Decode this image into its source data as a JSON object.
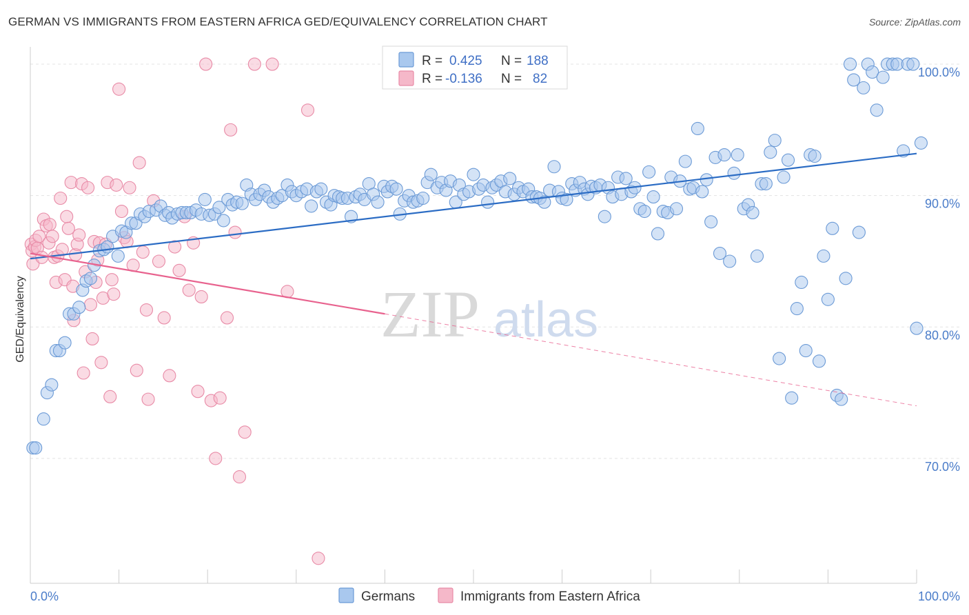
{
  "title": "GERMAN VS IMMIGRANTS FROM EASTERN AFRICA GED/EQUIVALENCY CORRELATION CHART",
  "source": "Source: ZipAtlas.com",
  "watermark": {
    "zip": "ZIP",
    "atlas": "atlas"
  },
  "colors": {
    "blue_fill": "#a9c8ee",
    "blue_stroke": "#6b9ad6",
    "blue_line": "#2b6cc4",
    "pink_fill": "#f5b8c9",
    "pink_stroke": "#e88aa6",
    "pink_line": "#e8628e",
    "tick_text": "#4a7cc9",
    "grid": "#e3e3e3"
  },
  "legend": {
    "r_label": "R =",
    "n_label": "N =",
    "blue": {
      "r": "0.425",
      "n": "188"
    },
    "pink": {
      "r": "-0.136",
      "n": "82"
    }
  },
  "bottom_legend": {
    "blue": "Germans",
    "pink": "Immigrants from Eastern Africa"
  },
  "chart_data": {
    "type": "scatter",
    "title": "GERMAN VS IMMIGRANTS FROM EASTERN AFRICA GED/EQUIVALENCY CORRELATION CHART",
    "xlabel": "",
    "ylabel": "GED/Equivalency",
    "xlim": [
      0,
      100
    ],
    "ylim": [
      60.5,
      101
    ],
    "x_tick_labels": [
      {
        "value": 0,
        "label": "0.0%"
      },
      {
        "value": 100,
        "label": "100.0%"
      }
    ],
    "y_ticks": [
      {
        "value": 100,
        "label": "100.0%"
      },
      {
        "value": 90,
        "label": "90.0%"
      },
      {
        "value": 80,
        "label": "80.0%"
      },
      {
        "value": 70,
        "label": "70.0%"
      }
    ],
    "grid": true,
    "legend_position": "top-center",
    "series": [
      {
        "name": "Germans",
        "color": "blue",
        "r": 0.425,
        "n": 188,
        "trend": {
          "x0": 0,
          "y0": 85.2,
          "x1": 100,
          "y1": 93.2
        },
        "points": [
          [
            0.3,
            70.8
          ],
          [
            0.6,
            70.8
          ],
          [
            1.5,
            73
          ],
          [
            1.9,
            75
          ],
          [
            2.4,
            75.6
          ],
          [
            2.9,
            78.2
          ],
          [
            3.3,
            78.2
          ],
          [
            3.9,
            78.8
          ],
          [
            4.4,
            81
          ],
          [
            4.9,
            81
          ],
          [
            5.5,
            81.5
          ],
          [
            5.9,
            82.8
          ],
          [
            6.3,
            83.5
          ],
          [
            6.8,
            83.7
          ],
          [
            7.2,
            84.7
          ],
          [
            7.8,
            85.8
          ],
          [
            8.3,
            85.9
          ],
          [
            8.7,
            86.1
          ],
          [
            9.3,
            86.9
          ],
          [
            9.9,
            85.4
          ],
          [
            10.3,
            87.3
          ],
          [
            10.8,
            87.2
          ],
          [
            11.4,
            87.9
          ],
          [
            11.9,
            87.9
          ],
          [
            12.4,
            88.6
          ],
          [
            12.9,
            88.4
          ],
          [
            13.4,
            88.8
          ],
          [
            14.2,
            88.9
          ],
          [
            14.7,
            89.2
          ],
          [
            15.2,
            88.5
          ],
          [
            15.6,
            88.7
          ],
          [
            16.0,
            88.3
          ],
          [
            16.6,
            88.6
          ],
          [
            17.1,
            88.7
          ],
          [
            17.6,
            88.7
          ],
          [
            18.1,
            88.7
          ],
          [
            18.7,
            88.9
          ],
          [
            19.3,
            88.6
          ],
          [
            19.7,
            89.7
          ],
          [
            20.2,
            88.5
          ],
          [
            20.8,
            88.6
          ],
          [
            21.3,
            89.1
          ],
          [
            21.8,
            88.1
          ],
          [
            22.3,
            89.7
          ],
          [
            22.8,
            89.3
          ],
          [
            23.3,
            89.5
          ],
          [
            23.9,
            89.4
          ],
          [
            24.4,
            90.8
          ],
          [
            24.9,
            90.1
          ],
          [
            25.4,
            89.7
          ],
          [
            25.9,
            90.1
          ],
          [
            26.4,
            90.4
          ],
          [
            26.9,
            89.9
          ],
          [
            27.4,
            89.5
          ],
          [
            27.9,
            89.8
          ],
          [
            28.4,
            90
          ],
          [
            29.0,
            90.8
          ],
          [
            29.5,
            90.3
          ],
          [
            30.0,
            90
          ],
          [
            30.6,
            90.3
          ],
          [
            31.2,
            90.5
          ],
          [
            31.7,
            89.2
          ],
          [
            32.3,
            90.3
          ],
          [
            32.8,
            90.5
          ],
          [
            33.4,
            89.5
          ],
          [
            33.9,
            89.3
          ],
          [
            34.3,
            90
          ],
          [
            34.8,
            89.9
          ],
          [
            35.2,
            89.8
          ],
          [
            35.8,
            89.8
          ],
          [
            36.2,
            88.4
          ],
          [
            36.7,
            89.9
          ],
          [
            37.2,
            90.1
          ],
          [
            37.7,
            89.7
          ],
          [
            38.2,
            90.9
          ],
          [
            38.7,
            90.1
          ],
          [
            39.2,
            89.5
          ],
          [
            39.9,
            90.7
          ],
          [
            40.3,
            90.3
          ],
          [
            40.8,
            90.7
          ],
          [
            41.3,
            90.5
          ],
          [
            41.7,
            88.6
          ],
          [
            42.2,
            89.6
          ],
          [
            42.7,
            90
          ],
          [
            43.2,
            89.5
          ],
          [
            43.7,
            89.6
          ],
          [
            44.3,
            89.8
          ],
          [
            44.8,
            91
          ],
          [
            45.2,
            91.6
          ],
          [
            45.9,
            90.6
          ],
          [
            46.4,
            91
          ],
          [
            46.9,
            90.4
          ],
          [
            47.4,
            91.1
          ],
          [
            48.0,
            89.5
          ],
          [
            48.4,
            90.8
          ],
          [
            48.9,
            90.1
          ],
          [
            49.5,
            90.3
          ],
          [
            50.0,
            91.6
          ],
          [
            50.6,
            90.5
          ],
          [
            51.1,
            90.8
          ],
          [
            51.6,
            89.5
          ],
          [
            52.1,
            90.6
          ],
          [
            52.6,
            90.8
          ],
          [
            53.1,
            91.1
          ],
          [
            53.6,
            90.3
          ],
          [
            54.1,
            91.3
          ],
          [
            54.6,
            90.1
          ],
          [
            55.1,
            90.6
          ],
          [
            55.6,
            90.3
          ],
          [
            56.2,
            90.5
          ],
          [
            56.6,
            89.9
          ],
          [
            57.1,
            89.9
          ],
          [
            57.5,
            89.8
          ],
          [
            58.0,
            89.5
          ],
          [
            58.6,
            90.4
          ],
          [
            59.1,
            92.2
          ],
          [
            59.6,
            90.3
          ],
          [
            60.0,
            89.8
          ],
          [
            60.5,
            89.7
          ],
          [
            61.1,
            90.9
          ],
          [
            61.5,
            90.4
          ],
          [
            62.0,
            91
          ],
          [
            62.5,
            90.5
          ],
          [
            62.9,
            90.1
          ],
          [
            63.3,
            90.7
          ],
          [
            63.8,
            90.6
          ],
          [
            64.3,
            90.8
          ],
          [
            64.8,
            88.4
          ],
          [
            65.2,
            90.6
          ],
          [
            65.7,
            89.9
          ],
          [
            66.3,
            91.4
          ],
          [
            66.7,
            90.1
          ],
          [
            67.2,
            91.3
          ],
          [
            67.8,
            90.3
          ],
          [
            68.2,
            90.6
          ],
          [
            68.8,
            89
          ],
          [
            69.3,
            88.8
          ],
          [
            69.8,
            91.8
          ],
          [
            70.3,
            89.9
          ],
          [
            70.8,
            87.1
          ],
          [
            71.4,
            88.8
          ],
          [
            71.9,
            88.7
          ],
          [
            72.3,
            91.4
          ],
          [
            72.9,
            89
          ],
          [
            73.3,
            91.1
          ],
          [
            73.9,
            92.6
          ],
          [
            74.4,
            90.5
          ],
          [
            74.8,
            90.6
          ],
          [
            75.3,
            95.1
          ],
          [
            75.8,
            90.3
          ],
          [
            76.3,
            91.2
          ],
          [
            76.8,
            88
          ],
          [
            77.3,
            92.9
          ],
          [
            77.8,
            85.6
          ],
          [
            78.3,
            93.1
          ],
          [
            78.9,
            85
          ],
          [
            79.4,
            91.7
          ],
          [
            79.8,
            93.1
          ],
          [
            80.5,
            89
          ],
          [
            81,
            89.3
          ],
          [
            81.5,
            88.7
          ],
          [
            82,
            85.4
          ],
          [
            82.5,
            90.9
          ],
          [
            83,
            90.9
          ],
          [
            83.5,
            93.3
          ],
          [
            84,
            94.2
          ],
          [
            84.5,
            77.6
          ],
          [
            85,
            91.4
          ],
          [
            85.5,
            92.7
          ],
          [
            85.9,
            74.6
          ],
          [
            86.5,
            81.4
          ],
          [
            87,
            83.4
          ],
          [
            87.5,
            78.2
          ],
          [
            88,
            93.1
          ],
          [
            88.5,
            93
          ],
          [
            89,
            77.4
          ],
          [
            89.5,
            85.4
          ],
          [
            90,
            82.1
          ],
          [
            90.5,
            87.5
          ],
          [
            91,
            74.8
          ],
          [
            91.5,
            74.5
          ],
          [
            92,
            83.7
          ],
          [
            92.5,
            100
          ],
          [
            92.9,
            98.8
          ],
          [
            93.5,
            87.2
          ],
          [
            94,
            98.2
          ],
          [
            94.5,
            100
          ],
          [
            95,
            99.4
          ],
          [
            95.5,
            96.5
          ],
          [
            96.2,
            99
          ],
          [
            96.7,
            100
          ],
          [
            97.3,
            100
          ],
          [
            97.8,
            100
          ],
          [
            98.5,
            93.4
          ],
          [
            99,
            100
          ],
          [
            99.6,
            100
          ],
          [
            100,
            79.9
          ],
          [
            100.5,
            94
          ]
        ]
      },
      {
        "name": "Immigrants from Eastern Africa",
        "color": "pink",
        "r": -0.136,
        "n": 82,
        "trend": {
          "x0": 0,
          "y0": 85.6,
          "x1": 40,
          "y1": 81.0,
          "dash_to": {
            "x": 100,
            "y": 74.0
          }
        },
        "points": [
          [
            0.1,
            86.3
          ],
          [
            0.2,
            85.8
          ],
          [
            0.3,
            84.8
          ],
          [
            0.5,
            86.1
          ],
          [
            0.6,
            86.6
          ],
          [
            0.8,
            86
          ],
          [
            1.0,
            86.9
          ],
          [
            1.3,
            85.3
          ],
          [
            1.5,
            88.2
          ],
          [
            1.8,
            87.7
          ],
          [
            2.1,
            86.4
          ],
          [
            2.2,
            87.8
          ],
          [
            2.5,
            86.9
          ],
          [
            2.7,
            85.3
          ],
          [
            2.9,
            83.4
          ],
          [
            3.1,
            85.4
          ],
          [
            3.4,
            89.8
          ],
          [
            3.6,
            85.9
          ],
          [
            3.9,
            83.6
          ],
          [
            4.1,
            88.4
          ],
          [
            4.3,
            87.5
          ],
          [
            4.6,
            91
          ],
          [
            4.8,
            83.1
          ],
          [
            4.9,
            80.5
          ],
          [
            5.1,
            85.5
          ],
          [
            5.3,
            86.3
          ],
          [
            5.5,
            87
          ],
          [
            5.8,
            90.9
          ],
          [
            6.0,
            76.5
          ],
          [
            6.2,
            84.2
          ],
          [
            6.5,
            90.6
          ],
          [
            6.8,
            81.7
          ],
          [
            7.0,
            79.1
          ],
          [
            7.2,
            86.5
          ],
          [
            7.4,
            83.4
          ],
          [
            7.6,
            85.1
          ],
          [
            7.8,
            86.4
          ],
          [
            8.0,
            77.3
          ],
          [
            8.2,
            82.2
          ],
          [
            8.5,
            86.3
          ],
          [
            8.7,
            91
          ],
          [
            9.0,
            74.7
          ],
          [
            9.2,
            83.6
          ],
          [
            9.4,
            82.5
          ],
          [
            9.7,
            90.8
          ],
          [
            10.0,
            98.1
          ],
          [
            10.3,
            88.8
          ],
          [
            10.6,
            86.8
          ],
          [
            10.9,
            86.5
          ],
          [
            11.2,
            90.6
          ],
          [
            11.6,
            84.7
          ],
          [
            12.0,
            76.7
          ],
          [
            12.3,
            92.5
          ],
          [
            12.7,
            85.7
          ],
          [
            13.1,
            81.3
          ],
          [
            13.3,
            74.5
          ],
          [
            13.9,
            89.6
          ],
          [
            14.5,
            85
          ],
          [
            15.1,
            80.7
          ],
          [
            15.7,
            76.3
          ],
          [
            16.3,
            86.1
          ],
          [
            16.8,
            84.3
          ],
          [
            17.4,
            88.4
          ],
          [
            17.9,
            82.8
          ],
          [
            18.4,
            86.4
          ],
          [
            18.9,
            75.1
          ],
          [
            19.3,
            82.3
          ],
          [
            19.8,
            100
          ],
          [
            20.4,
            74.4
          ],
          [
            20.9,
            70
          ],
          [
            21.4,
            74.6
          ],
          [
            22.2,
            80.7
          ],
          [
            22.6,
            95
          ],
          [
            23.1,
            87.2
          ],
          [
            23.6,
            68.6
          ],
          [
            24.2,
            72
          ],
          [
            25.3,
            100
          ],
          [
            27.3,
            100
          ],
          [
            29.0,
            82.7
          ],
          [
            31.3,
            96.5
          ],
          [
            32.5,
            62.4
          ]
        ]
      }
    ]
  }
}
